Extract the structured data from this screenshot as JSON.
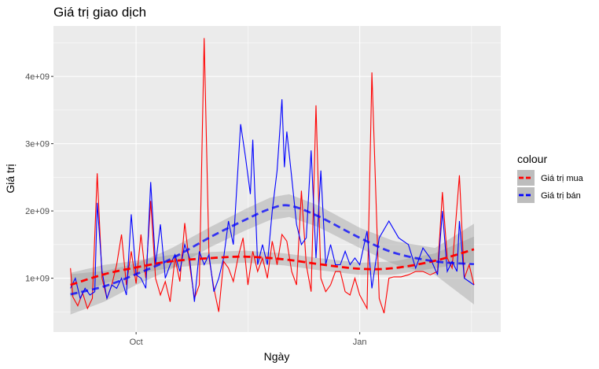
{
  "chart_data": {
    "type": "line",
    "title": "Giá trị giao dịch",
    "xlabel": "Ngày",
    "ylabel": "Giá trị",
    "x_domain": [
      "2023-08-28",
      "2024-02-28"
    ],
    "x_ticks": [
      {
        "date": "2023-10-01",
        "label": "Oct"
      },
      {
        "date": "2024-01-01",
        "label": "Jan"
      }
    ],
    "y_ticks": [
      {
        "value": 1000000000,
        "label": "1e+09"
      },
      {
        "value": 2000000000,
        "label": "2e+09"
      },
      {
        "value": 3000000000,
        "label": "3e+09"
      },
      {
        "value": 4000000000,
        "label": "4e+09"
      }
    ],
    "ylim": [
      200000000,
      4750000000
    ],
    "grid": true,
    "legend": {
      "title": "colour",
      "placement": "right"
    },
    "series": [
      {
        "name": "Giá trị mua",
        "color": "#ff0000",
        "points": [
          [
            "2023-09-04",
            1150000000
          ],
          [
            "2023-09-05",
            720000000
          ],
          [
            "2023-09-07",
            590000000
          ],
          [
            "2023-09-09",
            780000000
          ],
          [
            "2023-09-11",
            550000000
          ],
          [
            "2023-09-13",
            700000000
          ],
          [
            "2023-09-15",
            2560000000
          ],
          [
            "2023-09-17",
            1000000000
          ],
          [
            "2023-09-19",
            700000000
          ],
          [
            "2023-09-21",
            900000000
          ],
          [
            "2023-09-23",
            1200000000
          ],
          [
            "2023-09-25",
            1650000000
          ],
          [
            "2023-09-27",
            900000000
          ],
          [
            "2023-09-29",
            1400000000
          ],
          [
            "2023-10-01",
            920000000
          ],
          [
            "2023-10-03",
            1650000000
          ],
          [
            "2023-10-05",
            1000000000
          ],
          [
            "2023-10-07",
            2150000000
          ],
          [
            "2023-10-09",
            1000000000
          ],
          [
            "2023-10-11",
            750000000
          ],
          [
            "2023-10-13",
            950000000
          ],
          [
            "2023-10-15",
            650000000
          ],
          [
            "2023-10-17",
            1300000000
          ],
          [
            "2023-10-19",
            950000000
          ],
          [
            "2023-10-21",
            1820000000
          ],
          [
            "2023-10-23",
            1200000000
          ],
          [
            "2023-10-25",
            700000000
          ],
          [
            "2023-10-27",
            900000000
          ],
          [
            "2023-10-29",
            4570000000
          ],
          [
            "2023-10-31",
            1300000000
          ],
          [
            "2023-11-02",
            850000000
          ],
          [
            "2023-11-04",
            500000000
          ],
          [
            "2023-11-06",
            1250000000
          ],
          [
            "2023-11-08",
            1150000000
          ],
          [
            "2023-11-10",
            950000000
          ],
          [
            "2023-11-12",
            1320000000
          ],
          [
            "2023-11-14",
            1600000000
          ],
          [
            "2023-11-16",
            900000000
          ],
          [
            "2023-11-18",
            1400000000
          ],
          [
            "2023-11-20",
            1100000000
          ],
          [
            "2023-11-22",
            1300000000
          ],
          [
            "2023-11-24",
            1000000000
          ],
          [
            "2023-11-26",
            1550000000
          ],
          [
            "2023-11-28",
            1200000000
          ],
          [
            "2023-11-30",
            1650000000
          ],
          [
            "2023-12-02",
            1550000000
          ],
          [
            "2023-12-04",
            1100000000
          ],
          [
            "2023-12-06",
            900000000
          ],
          [
            "2023-12-08",
            2300000000
          ],
          [
            "2023-12-10",
            1200000000
          ],
          [
            "2023-12-12",
            800000000
          ],
          [
            "2023-12-14",
            3570000000
          ],
          [
            "2023-12-16",
            1000000000
          ],
          [
            "2023-12-18",
            800000000
          ],
          [
            "2023-12-20",
            900000000
          ],
          [
            "2023-12-22",
            1100000000
          ],
          [
            "2023-12-24",
            1100000000
          ],
          [
            "2023-12-26",
            800000000
          ],
          [
            "2023-12-28",
            750000000
          ],
          [
            "2023-12-30",
            1000000000
          ],
          [
            "2024-01-01",
            750000000
          ],
          [
            "2024-01-04",
            550000000
          ],
          [
            "2024-01-06",
            4060000000
          ],
          [
            "2024-01-09",
            700000000
          ],
          [
            "2024-01-11",
            480000000
          ],
          [
            "2024-01-13",
            1000000000
          ],
          [
            "2024-01-15",
            1020000000
          ],
          [
            "2024-01-18",
            1020000000
          ],
          [
            "2024-01-21",
            1050000000
          ],
          [
            "2024-01-24",
            1100000000
          ],
          [
            "2024-01-27",
            1100000000
          ],
          [
            "2024-01-30",
            1050000000
          ],
          [
            "2024-02-02",
            1100000000
          ],
          [
            "2024-02-04",
            2280000000
          ],
          [
            "2024-02-06",
            1300000000
          ],
          [
            "2024-02-08",
            1150000000
          ],
          [
            "2024-02-11",
            2530000000
          ],
          [
            "2024-02-13",
            1000000000
          ],
          [
            "2024-02-15",
            1200000000
          ],
          [
            "2024-02-17",
            900000000
          ]
        ],
        "trend": [
          [
            "2023-09-04",
            900000000
          ],
          [
            "2023-09-18",
            1060000000
          ],
          [
            "2023-10-01",
            1160000000
          ],
          [
            "2023-10-15",
            1250000000
          ],
          [
            "2023-11-01",
            1300000000
          ],
          [
            "2023-11-15",
            1320000000
          ],
          [
            "2023-12-01",
            1280000000
          ],
          [
            "2023-12-15",
            1210000000
          ],
          [
            "2024-01-01",
            1140000000
          ],
          [
            "2024-01-15",
            1150000000
          ],
          [
            "2024-02-01",
            1260000000
          ],
          [
            "2024-02-17",
            1430000000
          ]
        ],
        "ci_halfwidth": [
          [
            "2023-09-04",
            180000000
          ],
          [
            "2023-10-01",
            100000000
          ],
          [
            "2023-11-01",
            90000000
          ],
          [
            "2023-12-01",
            90000000
          ],
          [
            "2024-01-01",
            90000000
          ],
          [
            "2024-02-01",
            110000000
          ],
          [
            "2024-02-17",
            190000000
          ]
        ]
      },
      {
        "name": "Giá trị bán",
        "color": "#0000ff",
        "points": [
          [
            "2023-09-04",
            850000000
          ],
          [
            "2023-09-06",
            1000000000
          ],
          [
            "2023-09-08",
            700000000
          ],
          [
            "2023-09-10",
            850000000
          ],
          [
            "2023-09-12",
            750000000
          ],
          [
            "2023-09-14",
            800000000
          ],
          [
            "2023-09-15",
            2120000000
          ],
          [
            "2023-09-17",
            1100000000
          ],
          [
            "2023-09-19",
            700000000
          ],
          [
            "2023-09-21",
            900000000
          ],
          [
            "2023-09-23",
            850000000
          ],
          [
            "2023-09-25",
            1000000000
          ],
          [
            "2023-09-27",
            750000000
          ],
          [
            "2023-09-29",
            1950000000
          ],
          [
            "2023-10-01",
            1050000000
          ],
          [
            "2023-10-03",
            1000000000
          ],
          [
            "2023-10-05",
            850000000
          ],
          [
            "2023-10-07",
            2430000000
          ],
          [
            "2023-10-09",
            1200000000
          ],
          [
            "2023-10-11",
            1800000000
          ],
          [
            "2023-10-13",
            1000000000
          ],
          [
            "2023-10-15",
            1200000000
          ],
          [
            "2023-10-17",
            1350000000
          ],
          [
            "2023-10-19",
            1100000000
          ],
          [
            "2023-10-21",
            1500000000
          ],
          [
            "2023-10-23",
            1300000000
          ],
          [
            "2023-10-25",
            650000000
          ],
          [
            "2023-10-27",
            1400000000
          ],
          [
            "2023-10-29",
            1200000000
          ],
          [
            "2023-10-31",
            1350000000
          ],
          [
            "2023-11-02",
            800000000
          ],
          [
            "2023-11-04",
            1000000000
          ],
          [
            "2023-11-06",
            1300000000
          ],
          [
            "2023-11-08",
            1850000000
          ],
          [
            "2023-11-10",
            1500000000
          ],
          [
            "2023-11-13",
            3290000000
          ],
          [
            "2023-11-15",
            2800000000
          ],
          [
            "2023-11-17",
            2250000000
          ],
          [
            "2023-11-18",
            3060000000
          ],
          [
            "2023-11-20",
            1200000000
          ],
          [
            "2023-11-22",
            1500000000
          ],
          [
            "2023-11-24",
            1200000000
          ],
          [
            "2023-11-26",
            2000000000
          ],
          [
            "2023-11-28",
            2600000000
          ],
          [
            "2023-11-30",
            3660000000
          ],
          [
            "2023-12-01",
            2650000000
          ],
          [
            "2023-12-02",
            3180000000
          ],
          [
            "2023-12-04",
            2500000000
          ],
          [
            "2023-12-06",
            1800000000
          ],
          [
            "2023-12-08",
            1500000000
          ],
          [
            "2023-12-10",
            1600000000
          ],
          [
            "2023-12-12",
            2900000000
          ],
          [
            "2023-12-14",
            1300000000
          ],
          [
            "2023-12-16",
            2600000000
          ],
          [
            "2023-12-18",
            1200000000
          ],
          [
            "2023-12-20",
            1500000000
          ],
          [
            "2023-12-22",
            1200000000
          ],
          [
            "2023-12-24",
            1200000000
          ],
          [
            "2023-12-26",
            1400000000
          ],
          [
            "2023-12-28",
            1200000000
          ],
          [
            "2023-12-30",
            1300000000
          ],
          [
            "2024-01-01",
            1200000000
          ],
          [
            "2024-01-04",
            1700000000
          ],
          [
            "2024-01-06",
            850000000
          ],
          [
            "2024-01-09",
            1600000000
          ],
          [
            "2024-01-13",
            1850000000
          ],
          [
            "2024-01-17",
            1600000000
          ],
          [
            "2024-01-21",
            1500000000
          ],
          [
            "2024-01-24",
            1150000000
          ],
          [
            "2024-01-27",
            1450000000
          ],
          [
            "2024-01-30",
            1300000000
          ],
          [
            "2024-02-02",
            1050000000
          ],
          [
            "2024-02-04",
            2000000000
          ],
          [
            "2024-02-06",
            1100000000
          ],
          [
            "2024-02-08",
            1250000000
          ],
          [
            "2024-02-10",
            1100000000
          ],
          [
            "2024-02-11",
            1850000000
          ],
          [
            "2024-02-13",
            1000000000
          ],
          [
            "2024-02-15",
            950000000
          ],
          [
            "2024-02-17",
            900000000
          ]
        ],
        "trend": [
          [
            "2023-09-04",
            760000000
          ],
          [
            "2023-09-18",
            880000000
          ],
          [
            "2023-10-01",
            1060000000
          ],
          [
            "2023-10-15",
            1280000000
          ],
          [
            "2023-11-01",
            1620000000
          ],
          [
            "2023-11-15",
            1870000000
          ],
          [
            "2023-11-25",
            2030000000
          ],
          [
            "2023-12-03",
            2080000000
          ],
          [
            "2023-12-15",
            1920000000
          ],
          [
            "2024-01-01",
            1600000000
          ],
          [
            "2024-01-15",
            1380000000
          ],
          [
            "2024-02-01",
            1250000000
          ],
          [
            "2024-02-17",
            1210000000
          ]
        ],
        "ci_halfwidth": [
          [
            "2023-09-04",
            300000000
          ],
          [
            "2023-10-01",
            160000000
          ],
          [
            "2023-11-01",
            150000000
          ],
          [
            "2023-12-01",
            170000000
          ],
          [
            "2024-01-01",
            150000000
          ],
          [
            "2024-02-01",
            200000000
          ],
          [
            "2024-02-17",
            600000000
          ]
        ]
      }
    ]
  }
}
